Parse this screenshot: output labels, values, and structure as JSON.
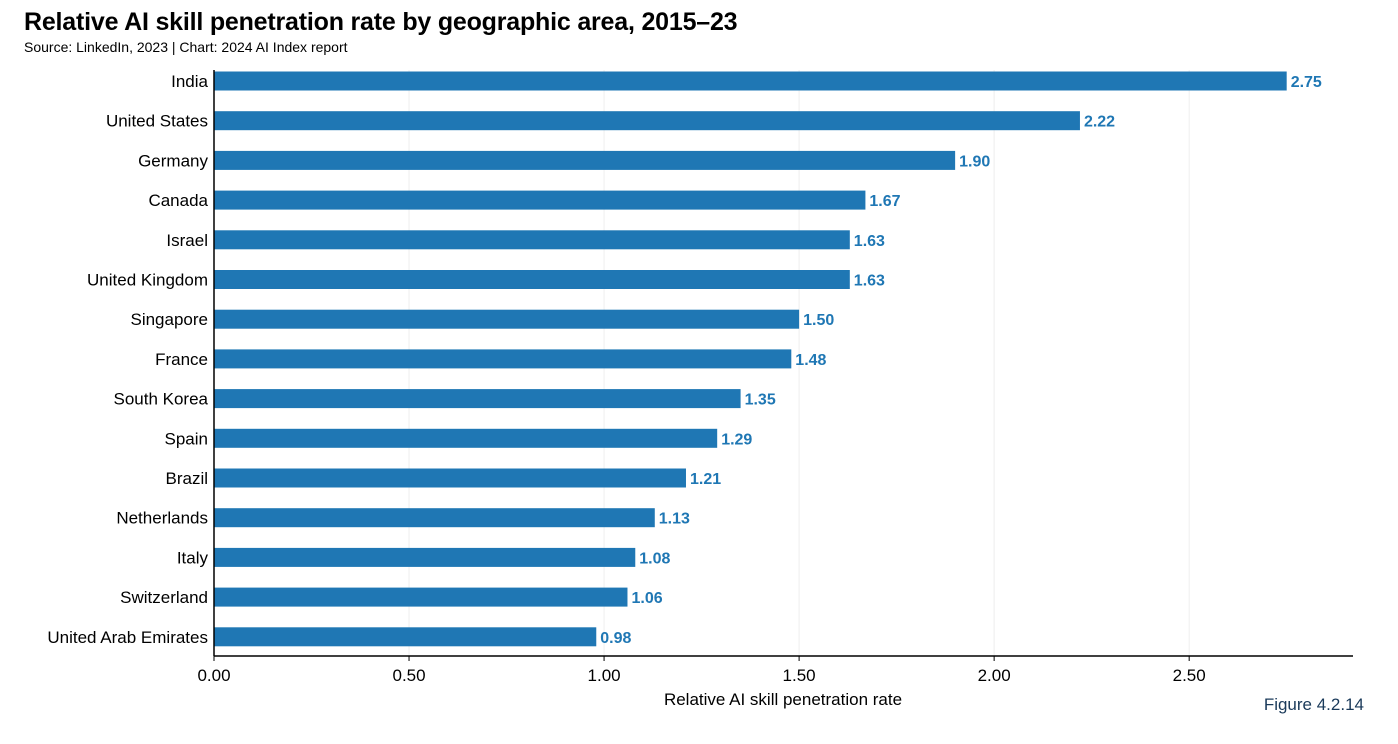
{
  "header": {
    "title": "Relative AI skill penetration rate by geographic area, 2015–23",
    "subtitle": "Source: LinkedIn, 2023 | Chart: 2024 AI Index report"
  },
  "figure_label": "Figure 4.2.14",
  "colors": {
    "bar": "#1f77b4",
    "value_label": "#1f77b4",
    "grid": "#eeeeee",
    "axis": "#000000"
  },
  "chart_data": {
    "type": "bar",
    "orientation": "horizontal",
    "title": "Relative AI skill penetration rate by geographic area, 2015–23",
    "subtitle": "Source: LinkedIn, 2023 | Chart: 2024 AI Index report",
    "xlabel": "Relative AI skill penetration rate",
    "ylabel": "",
    "xlim": [
      0,
      2.92
    ],
    "xticks": [
      0,
      0.5,
      1,
      1.5,
      2,
      2.5
    ],
    "xtick_labels": [
      "0.00",
      "0.50",
      "1.00",
      "1.50",
      "2.00",
      "2.50"
    ],
    "grid": true,
    "categories": [
      "India",
      "United States",
      "Germany",
      "Canada",
      "Israel",
      "United Kingdom",
      "Singapore",
      "France",
      "South Korea",
      "Spain",
      "Brazil",
      "Netherlands",
      "Italy",
      "Switzerland",
      "United Arab Emirates"
    ],
    "values": [
      2.75,
      2.22,
      1.9,
      1.67,
      1.63,
      1.63,
      1.5,
      1.48,
      1.35,
      1.29,
      1.21,
      1.13,
      1.08,
      1.06,
      0.98
    ],
    "value_labels": [
      "2.75",
      "2.22",
      "1.90",
      "1.67",
      "1.63",
      "1.63",
      "1.50",
      "1.48",
      "1.35",
      "1.29",
      "1.21",
      "1.13",
      "1.08",
      "1.06",
      "0.98"
    ]
  }
}
